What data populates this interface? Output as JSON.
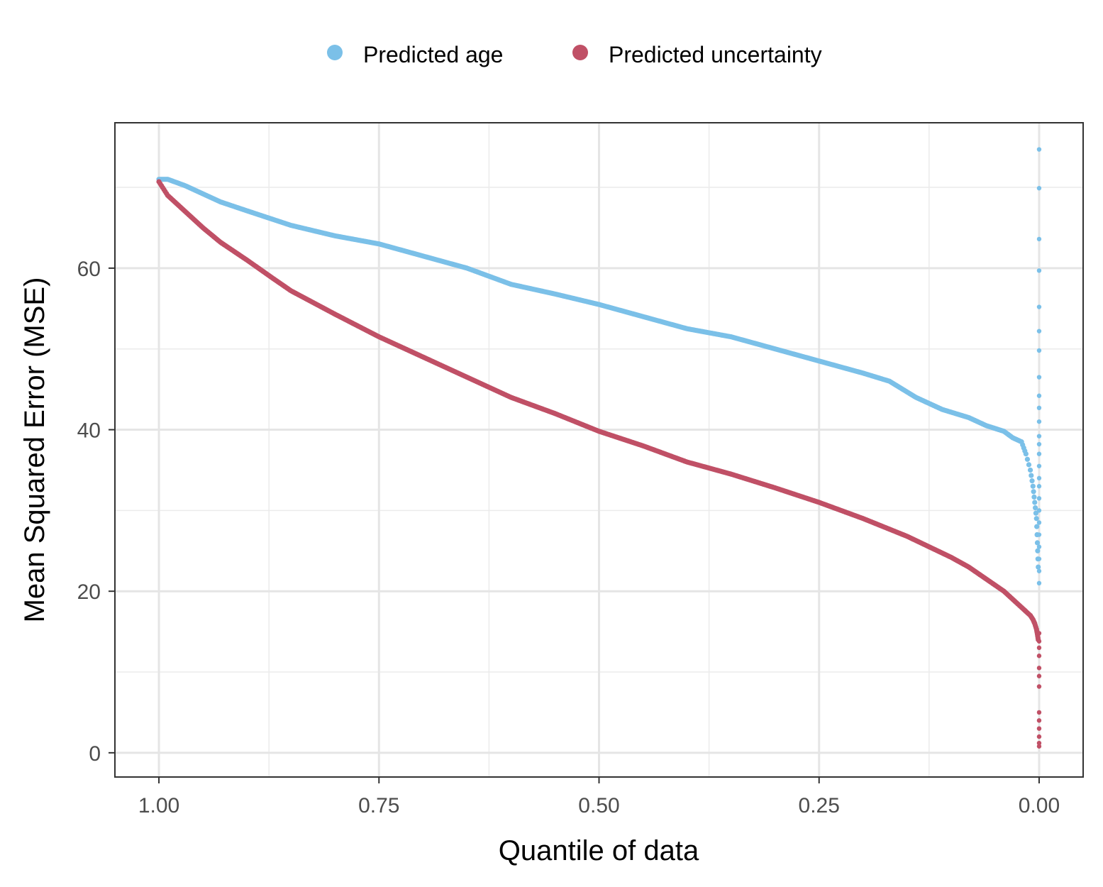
{
  "chart_data": {
    "type": "scatter",
    "xlabel": "Quantile of data",
    "ylabel": "Mean Squared Error (MSE)",
    "xlim": [
      1.05,
      -0.05
    ],
    "ylim": [
      -3,
      78
    ],
    "x_reversed": true,
    "grid": true,
    "legend_position": "top",
    "x_ticks": [
      {
        "value": 1.0,
        "label": "1.00"
      },
      {
        "value": 0.75,
        "label": "0.75"
      },
      {
        "value": 0.5,
        "label": "0.50"
      },
      {
        "value": 0.25,
        "label": "0.25"
      },
      {
        "value": 0.0,
        "label": "0.00"
      }
    ],
    "y_ticks": [
      {
        "value": 0,
        "label": "0"
      },
      {
        "value": 20,
        "label": "20"
      },
      {
        "value": 40,
        "label": "40"
      },
      {
        "value": 60,
        "label": "60"
      }
    ],
    "series": [
      {
        "name": "Predicted age",
        "color": "#7bc0e8",
        "x": [
          1.0,
          0.99,
          0.97,
          0.95,
          0.93,
          0.9,
          0.85,
          0.8,
          0.75,
          0.7,
          0.65,
          0.6,
          0.55,
          0.5,
          0.45,
          0.4,
          0.35,
          0.3,
          0.25,
          0.2,
          0.17,
          0.14,
          0.11,
          0.08,
          0.06,
          0.04,
          0.03,
          0.02,
          0.015,
          0.01,
          0.007,
          0.005,
          0.003,
          0.002,
          0.001
        ],
        "y": [
          71.0,
          71.0,
          70.2,
          69.2,
          68.2,
          67.1,
          65.3,
          64.0,
          63.0,
          61.5,
          60.0,
          58.0,
          56.8,
          55.5,
          54.0,
          52.5,
          51.5,
          50.0,
          48.5,
          47.0,
          46.0,
          44.0,
          42.5,
          41.5,
          40.5,
          39.8,
          39.0,
          38.5,
          37.0,
          35.0,
          33.0,
          31.0,
          29.0,
          26.0,
          23.0
        ],
        "edge_points": [
          21.0,
          22.5,
          24.0,
          25.5,
          27.0,
          28.5,
          30.0,
          31.5,
          33.0,
          34.0,
          35.5,
          37.0,
          38.2,
          39.2,
          41.0,
          42.7,
          44.2,
          46.5,
          49.8,
          52.2,
          55.2,
          59.7,
          63.6,
          69.9,
          74.7
        ]
      },
      {
        "name": "Predicted uncertainty",
        "color": "#c05066",
        "x": [
          1.0,
          0.99,
          0.97,
          0.95,
          0.93,
          0.9,
          0.87,
          0.85,
          0.8,
          0.75,
          0.7,
          0.65,
          0.6,
          0.55,
          0.5,
          0.45,
          0.4,
          0.35,
          0.3,
          0.25,
          0.2,
          0.15,
          0.1,
          0.08,
          0.06,
          0.04,
          0.03,
          0.02,
          0.015,
          0.01,
          0.007,
          0.005,
          0.003,
          0.002,
          0.001
        ],
        "y": [
          70.7,
          69.0,
          67.0,
          65.0,
          63.2,
          61.0,
          58.7,
          57.2,
          54.3,
          51.5,
          49.0,
          46.5,
          44.0,
          42.0,
          39.8,
          38.0,
          36.0,
          34.5,
          32.8,
          31.0,
          29.0,
          26.8,
          24.2,
          23.0,
          21.5,
          20.0,
          19.0,
          18.0,
          17.5,
          17.0,
          16.5,
          16.0,
          15.3,
          14.7,
          14.0
        ],
        "edge_points": [
          0.8,
          1.2,
          2.0,
          3.0,
          4.0,
          5.0,
          8.2,
          9.5,
          10.5,
          12.0,
          13.0,
          13.8,
          14.8
        ]
      }
    ]
  }
}
